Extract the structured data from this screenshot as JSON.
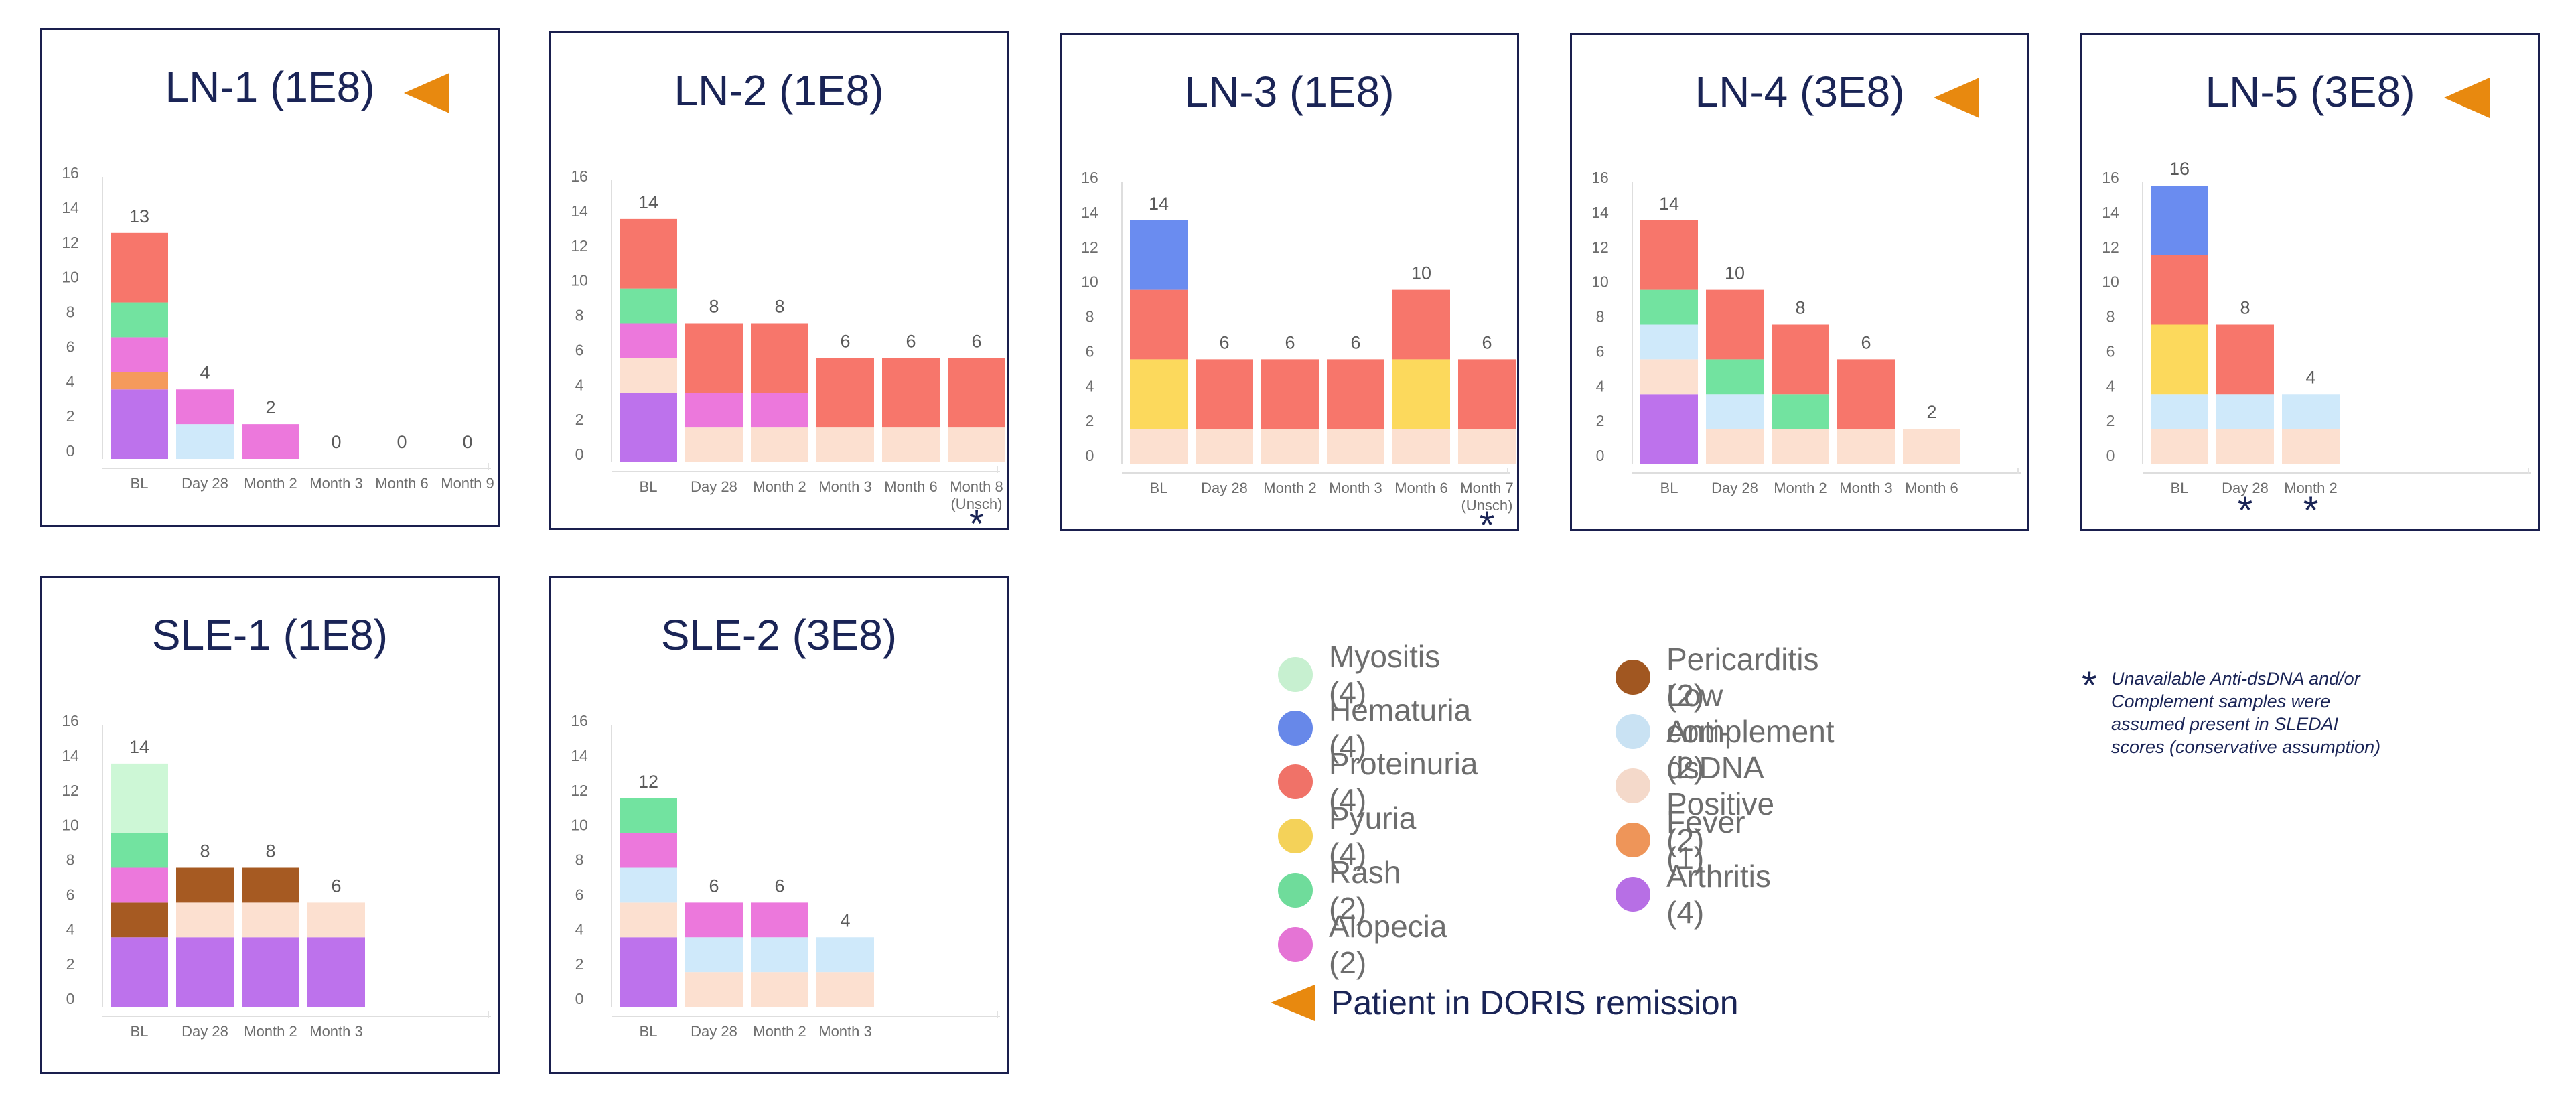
{
  "colors": {
    "Myositis": "#cdf7d6",
    "Hematuria": "#6a8cf0",
    "Proteinuria": "#f7766b",
    "Pyuria": "#fcd95c",
    "Rash": "#72e3a0",
    "Alopecia": "#ec78dc",
    "Pericarditis": "#a65a22",
    "Low complement": "#cfe9fa",
    "Anti-dsDNA Positive": "#fce0d0",
    "Fever": "#f59a5c",
    "Arthritis": "#bd72ec",
    "remission": "#e8890f",
    "title": "#1a2456",
    "axis": "#6d6d6d"
  },
  "legend": {
    "items": [
      {
        "key": "Myositis",
        "label": "Myositis (4)"
      },
      {
        "key": "Hematuria",
        "label": "Hematuria (4)"
      },
      {
        "key": "Proteinuria",
        "label": "Proteinuria (4)"
      },
      {
        "key": "Pyuria",
        "label": "Pyuria (4)"
      },
      {
        "key": "Rash",
        "label": "Rash (2)"
      },
      {
        "key": "Alopecia",
        "label": "Alopecia (2)"
      },
      {
        "key": "Pericarditis",
        "label": "Pericarditis (2)"
      },
      {
        "key": "Low complement",
        "label": "Low complement (2)"
      },
      {
        "key": "Anti-dsDNA Positive",
        "label": "Anti-dsDNA Positive (2)"
      },
      {
        "key": "Fever",
        "label": "Fever (1)"
      },
      {
        "key": "Arthritis",
        "label": "Arthritis (4)"
      }
    ],
    "remission_label": "Patient in DORIS remission",
    "remission_icon": "orange-left-triangle-icon"
  },
  "footnote": {
    "symbol": "*",
    "text": "Unavailable Anti-dsDNA and/or Complement samples were assumed present in SLEDAI scores (conservative assumption)"
  },
  "chart_data": [
    {
      "type": "bar",
      "stacked": true,
      "title": "LN-1 (1E8)",
      "remission": true,
      "ylim": [
        0,
        16
      ],
      "yticks": [
        0,
        2,
        4,
        6,
        8,
        10,
        12,
        14,
        16
      ],
      "categories": [
        "BL",
        "Day 28",
        "Month 2",
        "Month 3",
        "Month 6",
        "Month 9"
      ],
      "totals": [
        "13",
        "4",
        "2",
        "0",
        "0",
        "0"
      ],
      "stacks": [
        [
          {
            "s": "Arthritis",
            "v": 4
          },
          {
            "s": "Fever",
            "v": 1
          },
          {
            "s": "Alopecia",
            "v": 2
          },
          {
            "s": "Rash",
            "v": 2
          },
          {
            "s": "Proteinuria",
            "v": 4
          }
        ],
        [
          {
            "s": "Low complement",
            "v": 2
          },
          {
            "s": "Alopecia",
            "v": 2
          }
        ],
        [
          {
            "s": "Alopecia",
            "v": 2
          }
        ],
        [],
        [],
        []
      ],
      "asterisks": []
    },
    {
      "type": "bar",
      "stacked": true,
      "title": "LN-2 (1E8)",
      "remission": false,
      "ylim": [
        0,
        16
      ],
      "yticks": [
        0,
        2,
        4,
        6,
        8,
        10,
        12,
        14,
        16
      ],
      "categories": [
        "BL",
        "Day 28",
        "Month 2",
        "Month 3",
        "Month 6",
        "Month 8\n(Unsch)"
      ],
      "totals": [
        "14",
        "8",
        "8",
        "6",
        "6",
        "6"
      ],
      "stacks": [
        [
          {
            "s": "Arthritis",
            "v": 4
          },
          {
            "s": "Anti-dsDNA Positive",
            "v": 2
          },
          {
            "s": "Alopecia",
            "v": 2
          },
          {
            "s": "Rash",
            "v": 2
          },
          {
            "s": "Proteinuria",
            "v": 4
          }
        ],
        [
          {
            "s": "Anti-dsDNA Positive",
            "v": 2
          },
          {
            "s": "Alopecia",
            "v": 2
          },
          {
            "s": "Proteinuria",
            "v": 4
          }
        ],
        [
          {
            "s": "Anti-dsDNA Positive",
            "v": 2
          },
          {
            "s": "Alopecia",
            "v": 2
          },
          {
            "s": "Proteinuria",
            "v": 4
          }
        ],
        [
          {
            "s": "Anti-dsDNA Positive",
            "v": 2
          },
          {
            "s": "Proteinuria",
            "v": 4
          }
        ],
        [
          {
            "s": "Anti-dsDNA Positive",
            "v": 2
          },
          {
            "s": "Proteinuria",
            "v": 4
          }
        ],
        [
          {
            "s": "Anti-dsDNA Positive",
            "v": 2
          },
          {
            "s": "Proteinuria",
            "v": 4
          }
        ]
      ],
      "asterisks": [
        5
      ]
    },
    {
      "type": "bar",
      "stacked": true,
      "title": "LN-3 (1E8)",
      "remission": false,
      "ylim": [
        0,
        16
      ],
      "yticks": [
        0,
        2,
        4,
        6,
        8,
        10,
        12,
        14,
        16
      ],
      "categories": [
        "BL",
        "Day 28",
        "Month 2",
        "Month 3",
        "Month 6",
        "Month 7\n(Unsch)"
      ],
      "totals": [
        "14",
        "6",
        "6",
        "6",
        "10",
        "6"
      ],
      "stacks": [
        [
          {
            "s": "Anti-dsDNA Positive",
            "v": 2
          },
          {
            "s": "Pyuria",
            "v": 4
          },
          {
            "s": "Proteinuria",
            "v": 4
          },
          {
            "s": "Hematuria",
            "v": 4
          }
        ],
        [
          {
            "s": "Anti-dsDNA Positive",
            "v": 2
          },
          {
            "s": "Proteinuria",
            "v": 4
          }
        ],
        [
          {
            "s": "Anti-dsDNA Positive",
            "v": 2
          },
          {
            "s": "Proteinuria",
            "v": 4
          }
        ],
        [
          {
            "s": "Anti-dsDNA Positive",
            "v": 2
          },
          {
            "s": "Proteinuria",
            "v": 4
          }
        ],
        [
          {
            "s": "Anti-dsDNA Positive",
            "v": 2
          },
          {
            "s": "Pyuria",
            "v": 4
          },
          {
            "s": "Proteinuria",
            "v": 4
          }
        ],
        [
          {
            "s": "Anti-dsDNA Positive",
            "v": 2
          },
          {
            "s": "Proteinuria",
            "v": 4
          }
        ]
      ],
      "asterisks": [
        5
      ]
    },
    {
      "type": "bar",
      "stacked": true,
      "title": "LN-4 (3E8)",
      "remission": true,
      "ylim": [
        0,
        16
      ],
      "yticks": [
        0,
        2,
        4,
        6,
        8,
        10,
        12,
        14,
        16
      ],
      "categories": [
        "BL",
        "Day 28",
        "Month 2",
        "Month 3",
        "Month 6"
      ],
      "totals": [
        "14",
        "10",
        "8",
        "6",
        "2"
      ],
      "stacks": [
        [
          {
            "s": "Arthritis",
            "v": 4
          },
          {
            "s": "Anti-dsDNA Positive",
            "v": 2
          },
          {
            "s": "Low complement",
            "v": 2
          },
          {
            "s": "Rash",
            "v": 2
          },
          {
            "s": "Proteinuria",
            "v": 4
          }
        ],
        [
          {
            "s": "Anti-dsDNA Positive",
            "v": 2
          },
          {
            "s": "Low complement",
            "v": 2
          },
          {
            "s": "Rash",
            "v": 2
          },
          {
            "s": "Proteinuria",
            "v": 4
          }
        ],
        [
          {
            "s": "Anti-dsDNA Positive",
            "v": 2
          },
          {
            "s": "Rash",
            "v": 2
          },
          {
            "s": "Proteinuria",
            "v": 4
          }
        ],
        [
          {
            "s": "Anti-dsDNA Positive",
            "v": 2
          },
          {
            "s": "Proteinuria",
            "v": 4
          }
        ],
        [
          {
            "s": "Anti-dsDNA Positive",
            "v": 2
          }
        ]
      ],
      "asterisks": []
    },
    {
      "type": "bar",
      "stacked": true,
      "title": "LN-5 (3E8)",
      "remission": true,
      "ylim": [
        0,
        16
      ],
      "yticks": [
        0,
        2,
        4,
        6,
        8,
        10,
        12,
        14,
        16
      ],
      "categories": [
        "BL",
        "Day 28",
        "Month 2"
      ],
      "totals": [
        "16",
        "8",
        "4"
      ],
      "stacks": [
        [
          {
            "s": "Anti-dsDNA Positive",
            "v": 2
          },
          {
            "s": "Low complement",
            "v": 2
          },
          {
            "s": "Pyuria",
            "v": 4
          },
          {
            "s": "Proteinuria",
            "v": 4
          },
          {
            "s": "Hematuria",
            "v": 4
          }
        ],
        [
          {
            "s": "Anti-dsDNA Positive",
            "v": 2
          },
          {
            "s": "Low complement",
            "v": 2
          },
          {
            "s": "Proteinuria",
            "v": 4
          }
        ],
        [
          {
            "s": "Anti-dsDNA Positive",
            "v": 2
          },
          {
            "s": "Low complement",
            "v": 2
          }
        ]
      ],
      "asterisks": [
        1,
        2
      ]
    },
    {
      "type": "bar",
      "stacked": true,
      "title": "SLE-1 (1E8)",
      "remission": false,
      "ylim": [
        0,
        16
      ],
      "yticks": [
        0,
        2,
        4,
        6,
        8,
        10,
        12,
        14,
        16
      ],
      "categories": [
        "BL",
        "Day 28",
        "Month 2",
        "Month 3"
      ],
      "totals": [
        "14",
        "8",
        "8",
        "6"
      ],
      "stacks": [
        [
          {
            "s": "Arthritis",
            "v": 4
          },
          {
            "s": "Pericarditis",
            "v": 2
          },
          {
            "s": "Alopecia",
            "v": 2
          },
          {
            "s": "Rash",
            "v": 2
          },
          {
            "s": "Myositis",
            "v": 4
          }
        ],
        [
          {
            "s": "Arthritis",
            "v": 4
          },
          {
            "s": "Anti-dsDNA Positive",
            "v": 2
          },
          {
            "s": "Pericarditis",
            "v": 2
          }
        ],
        [
          {
            "s": "Arthritis",
            "v": 4
          },
          {
            "s": "Anti-dsDNA Positive",
            "v": 2
          },
          {
            "s": "Pericarditis",
            "v": 2
          }
        ],
        [
          {
            "s": "Arthritis",
            "v": 4
          },
          {
            "s": "Anti-dsDNA Positive",
            "v": 2
          }
        ]
      ],
      "asterisks": []
    },
    {
      "type": "bar",
      "stacked": true,
      "title": "SLE-2 (3E8)",
      "remission": false,
      "ylim": [
        0,
        16
      ],
      "yticks": [
        0,
        2,
        4,
        6,
        8,
        10,
        12,
        14,
        16
      ],
      "categories": [
        "BL",
        "Day 28",
        "Month 2",
        "Month 3"
      ],
      "totals": [
        "12",
        "6",
        "6",
        "4"
      ],
      "stacks": [
        [
          {
            "s": "Arthritis",
            "v": 4
          },
          {
            "s": "Anti-dsDNA Positive",
            "v": 2
          },
          {
            "s": "Low complement",
            "v": 2
          },
          {
            "s": "Alopecia",
            "v": 2
          },
          {
            "s": "Rash",
            "v": 2
          }
        ],
        [
          {
            "s": "Anti-dsDNA Positive",
            "v": 2
          },
          {
            "s": "Low complement",
            "v": 2
          },
          {
            "s": "Alopecia",
            "v": 2
          }
        ],
        [
          {
            "s": "Anti-dsDNA Positive",
            "v": 2
          },
          {
            "s": "Low complement",
            "v": 2
          },
          {
            "s": "Alopecia",
            "v": 2
          }
        ],
        [
          {
            "s": "Anti-dsDNA Positive",
            "v": 2
          },
          {
            "s": "Low complement",
            "v": 2
          }
        ]
      ],
      "asterisks": []
    }
  ]
}
